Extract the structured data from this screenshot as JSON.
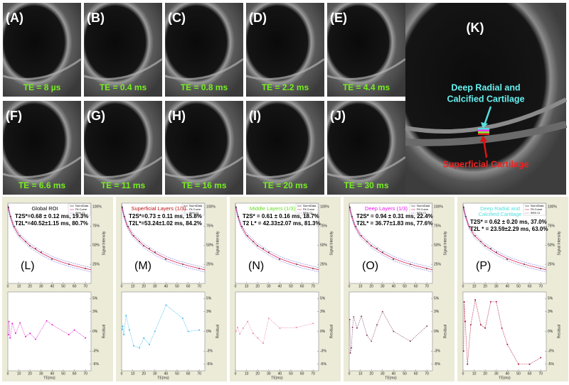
{
  "images": [
    {
      "label": "(A)",
      "te": "TE = 8 µs"
    },
    {
      "label": "(B)",
      "te": "TE = 0.4 ms"
    },
    {
      "label": "(C)",
      "te": "TE = 0.8 ms"
    },
    {
      "label": "(D)",
      "te": "TE = 2.2 ms"
    },
    {
      "label": "(E)",
      "te": "TE = 4.4 ms"
    },
    {
      "label": "(F)",
      "te": "TE = 6.6 ms"
    },
    {
      "label": "(G)",
      "te": "TE = 11 ms"
    },
    {
      "label": "(H)",
      "te": "TE = 16 ms"
    },
    {
      "label": "(I)",
      "te": "TE = 20 ms"
    },
    {
      "label": "(J)",
      "te": "TE = 30 ms"
    }
  ],
  "panel_k": {
    "label": "(K)",
    "top_note": [
      "Deep Radial and",
      "Calcified Cartilage"
    ],
    "bottom_note": "Superficial Cartilage"
  },
  "legend": [
    "NormData",
    "Fit Curve",
    "95% CI"
  ],
  "xticks": [
    0,
    10,
    20,
    30,
    40,
    50,
    60,
    70
  ],
  "xlim": [
    0,
    75
  ],
  "signal_ticks": [
    {
      "value": 100,
      "label": "100%"
    },
    {
      "value": 75,
      "label": "75%"
    },
    {
      "value": 50,
      "label": "50%"
    },
    {
      "value": 25,
      "label": "25%"
    }
  ],
  "signal_lim": [
    0,
    105
  ],
  "residual_ticks": [
    {
      "value": 5,
      "label": "5%"
    },
    {
      "value": 3,
      "label": "3%"
    },
    {
      "value": 0,
      "label": "0%"
    },
    {
      "value": -3,
      "label": "-3%"
    },
    {
      "value": -5,
      "label": "-5%"
    }
  ],
  "residual_lim": [
    -6,
    6
  ],
  "signal_label": "Signal Intensity",
  "residual_label": "Residual",
  "x_label": "TE(ms)",
  "plots": [
    {
      "label": "(L)",
      "title": [
        "Global ROI"
      ],
      "line1": "T2S*=0.68 ± 0.12 ms, 19.3%",
      "line2": "T2L*=40.52±1.15 ms, 80.7%",
      "color": "#dd22cc",
      "title_color": "#000000",
      "residuals": [
        [
          0.5,
          -0.5
        ],
        [
          1,
          1.5
        ],
        [
          2,
          -1
        ],
        [
          4,
          1.2
        ],
        [
          7,
          -0.3
        ],
        [
          11,
          1.3
        ],
        [
          16,
          -0.8
        ],
        [
          20,
          -0.3
        ],
        [
          25,
          -1.2
        ],
        [
          35,
          1.6
        ],
        [
          40,
          1
        ],
        [
          55,
          -0.5
        ],
        [
          60,
          0.2
        ],
        [
          70,
          -1
        ]
      ]
    },
    {
      "label": "(M)",
      "title": [
        "Superficial Layers (1/3)"
      ],
      "line1": "T2S*=0.73 ± 0.11 ms, 15.8%",
      "line2": "T2L*=53.24±1.02 ms, 84.2%",
      "color": "#33bbee",
      "title_color": "#bb1111",
      "residuals": [
        [
          0.5,
          0.3
        ],
        [
          1,
          0.8
        ],
        [
          2,
          -0.5
        ],
        [
          4,
          2.4
        ],
        [
          7,
          0.2
        ],
        [
          11,
          -2.2
        ],
        [
          16,
          -2.5
        ],
        [
          20,
          -1
        ],
        [
          25,
          -2
        ],
        [
          30,
          0
        ],
        [
          40,
          4
        ],
        [
          55,
          2
        ],
        [
          60,
          0
        ],
        [
          70,
          0.2
        ]
      ]
    },
    {
      "label": "(N)",
      "title": [
        "Middle Layers (1/3)"
      ],
      "line1": "T2S* = 0.61 ± 0.16 ms, 18.7%",
      "line2": "T2 L* = 42.33±2.07 ms, 81.3%",
      "color": "#ee88aa",
      "title_color": "#66dd22",
      "residuals": [
        [
          0.5,
          0
        ],
        [
          2,
          0.6
        ],
        [
          4,
          -0.4
        ],
        [
          7,
          0.5
        ],
        [
          11,
          1.5
        ],
        [
          16,
          -0.3
        ],
        [
          20,
          -1
        ],
        [
          25,
          -1.8
        ],
        [
          30,
          2
        ],
        [
          40,
          0.5
        ],
        [
          55,
          0.6
        ],
        [
          70,
          1.2
        ]
      ]
    },
    {
      "label": "(O)",
      "title": [
        "Deep Layers (1/3)"
      ],
      "line1": "T2S* = 0.94 ± 0.31 ms, 22.4%",
      "line2": "T2L* = 36.77±1.83 ms, 77.6%",
      "color": "#884466",
      "title_color": "#ee11ee",
      "residuals": [
        [
          0.5,
          1.8
        ],
        [
          1,
          -3.3
        ],
        [
          2,
          -2.5
        ],
        [
          3,
          0.6
        ],
        [
          4,
          2.2
        ],
        [
          7,
          0.5
        ],
        [
          11,
          2.3
        ],
        [
          16,
          -0.6
        ],
        [
          20,
          -1.5
        ],
        [
          25,
          1
        ],
        [
          30,
          3
        ],
        [
          40,
          0
        ],
        [
          55,
          -1.5
        ],
        [
          70,
          0.8
        ]
      ]
    },
    {
      "label": "(P)",
      "title": [
        "Deep Radial and",
        "Calcified Cartilage"
      ],
      "line1": "T2S* = 0.62 ± 0.20 ms,   37.0%",
      "line2": "T2L * = 23.59±2.29 ms, 63.0%",
      "color": "#aa1133",
      "title_color": "#55dddd",
      "residuals": [
        [
          0.5,
          -3
        ],
        [
          1,
          4.5
        ],
        [
          2,
          1.5
        ],
        [
          4,
          -5
        ],
        [
          7,
          1
        ],
        [
          11,
          4.8
        ],
        [
          16,
          1
        ],
        [
          20,
          0.5
        ],
        [
          25,
          4.5
        ],
        [
          30,
          4.5
        ],
        [
          35,
          0.5
        ],
        [
          40,
          -2
        ],
        [
          50,
          -5
        ],
        [
          60,
          -5
        ],
        [
          70,
          -4
        ]
      ]
    }
  ]
}
